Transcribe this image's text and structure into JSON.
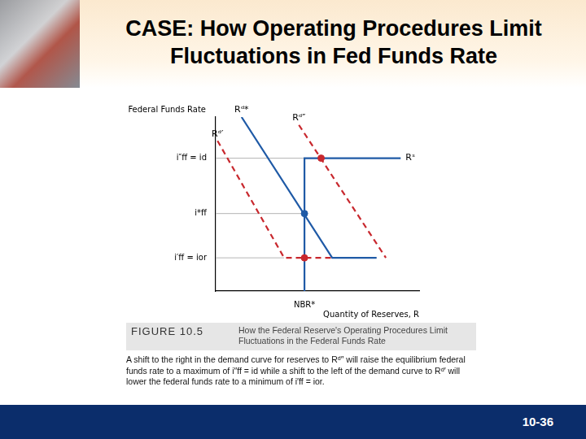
{
  "chart_data": {
    "type": "line",
    "title": "CASE: How Operating Procedures Limit Fluctuations in Fed Funds Rate",
    "xlabel": "Quantity of Reserves, R",
    "ylabel": "Federal Funds Rate",
    "xlim": [
      0,
      11
    ],
    "ylim": [
      0,
      11
    ],
    "xticks": [
      {
        "value": 4.8,
        "label": "NBR*"
      }
    ],
    "yticks": [
      {
        "value": 2.1,
        "label": "i′ff = ior"
      },
      {
        "value": 4.9,
        "label": "i*ff"
      },
      {
        "value": 8.4,
        "label": "i″ff = id"
      }
    ],
    "grid": false,
    "series": [
      {
        "color": "#b5b5b5",
        "line_style": "solid",
        "x": [
          0,
          5.7
        ],
        "values": [
          8.4,
          8.4
        ]
      },
      {
        "color": "#b5b5b5",
        "line_style": "solid",
        "x": [
          0,
          4.8
        ],
        "values": [
          4.9,
          4.9
        ]
      },
      {
        "color": "#b5b5b5",
        "line_style": "solid",
        "x": [
          0,
          3.7
        ],
        "values": [
          2.1,
          2.1
        ]
      },
      {
        "name": "Rᵈ′",
        "color": "#c8282e",
        "line_style": "dashed",
        "x": [
          0.1,
          3.7,
          6.3
        ],
        "values": [
          9.5,
          2.1,
          2.1
        ]
      },
      {
        "name": "Rᵈ″",
        "color": "#c8282e",
        "line_style": "dashed",
        "x": [
          4.5,
          9.2
        ],
        "values": [
          10.5,
          2.1
        ]
      },
      {
        "name": "Rᵈ*",
        "color": "#1f5aa6",
        "line_style": "solid",
        "x": [
          1.4,
          6.3,
          8.7
        ],
        "values": [
          11,
          2.1,
          2.1
        ]
      },
      {
        "name": "Rˢ",
        "color": "#1f5aa6",
        "line_style": "solid",
        "x": [
          4.8,
          4.8,
          10
        ],
        "values": [
          0,
          8.4,
          8.4
        ]
      },
      {
        "type": "scatter",
        "marker": "circle",
        "colors": [
          "#c8282e",
          "#1f5aa6",
          "#c8282e"
        ],
        "x": [
          5.7,
          4.8,
          4.8
        ],
        "values": [
          8.4,
          4.9,
          2.1
        ]
      }
    ]
  },
  "figure": {
    "label": "FIGURE 10.5",
    "title": "How the Federal Reserve's Operating Procedures Limit Fluctuations in the Federal Funds Rate",
    "caption": "A shift to the right in the demand curve for reserves to Rᵈ″ will raise the equilibrium federal funds rate to a maximum of i″ff = id while a shift to the left of the demand curve to Rᵈ′ will lower the federal funds rate to a minimum of i′ff = ior."
  },
  "page": "10-36"
}
